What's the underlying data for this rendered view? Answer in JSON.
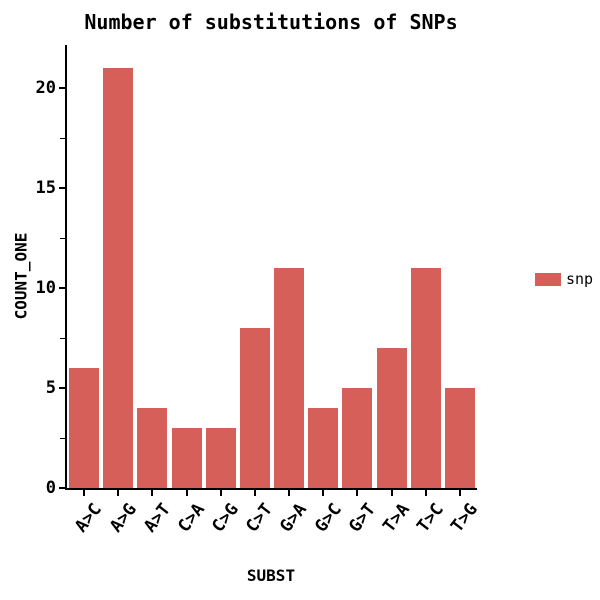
{
  "chart_data": {
    "type": "bar",
    "title": "Number of substitutions of SNPs",
    "xlabel": "SUBST",
    "ylabel": "COUNT_ONE",
    "categories": [
      "A>C",
      "A>G",
      "A>T",
      "C>A",
      "C>G",
      "C>T",
      "G>A",
      "G>C",
      "G>T",
      "T>A",
      "T>C",
      "T>G"
    ],
    "series": [
      {
        "name": "snp",
        "values": [
          6,
          21,
          4,
          3,
          3,
          8,
          11,
          4,
          5,
          7,
          11,
          5
        ],
        "color": "#d66059"
      }
    ],
    "ylim": [
      0,
      22.15
    ],
    "yticks": [
      0,
      5,
      10,
      15,
      20
    ],
    "yticks_minor": [
      2.5,
      7.5,
      12.5,
      17.5
    ],
    "grid": false,
    "axis_color": "#000000",
    "xtick_rotation_deg": 52,
    "legend": {
      "position": "right",
      "entries": [
        {
          "label": "snp",
          "color": "#d66059"
        }
      ]
    }
  }
}
